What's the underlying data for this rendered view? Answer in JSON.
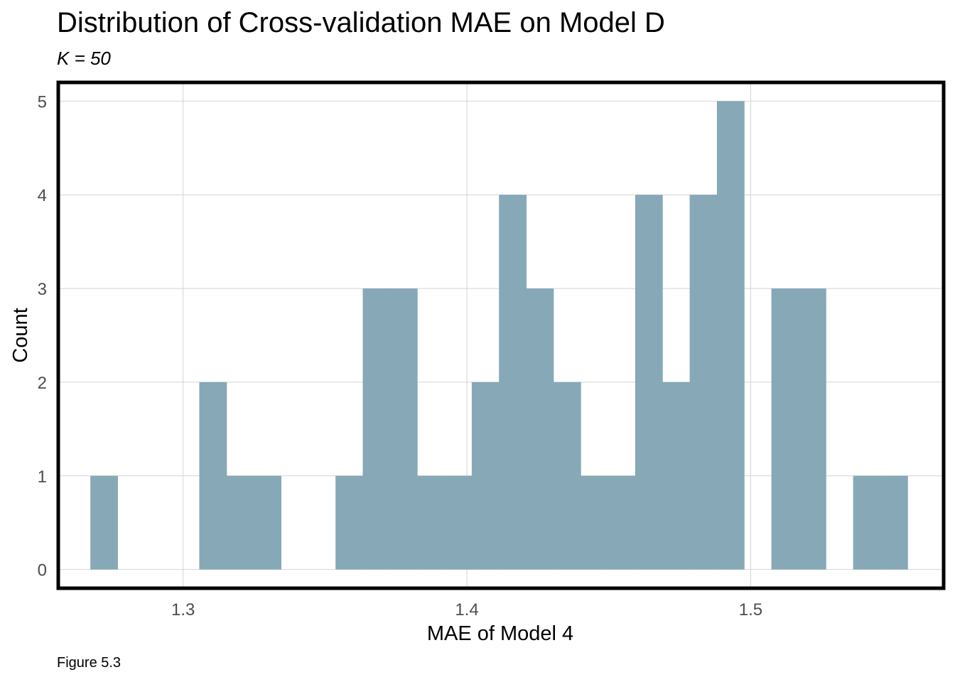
{
  "title": "Distribution of Cross-validation MAE on Model D",
  "subtitle": "K = 50",
  "caption": "Figure 5.3",
  "chart_data": {
    "type": "bar",
    "subtype": "histogram",
    "xlabel": "MAE of Model 4",
    "ylabel": "Count",
    "xlim": [
      1.256,
      1.568
    ],
    "ylim": [
      -0.2,
      5.2
    ],
    "x_ticks": [
      1.3,
      1.4,
      1.5
    ],
    "x_tick_labels": [
      "1.3",
      "1.4",
      "1.5"
    ],
    "y_ticks": [
      0,
      1,
      2,
      3,
      4,
      5
    ],
    "y_tick_labels": [
      "0",
      "1",
      "2",
      "3",
      "4",
      "5"
    ],
    "grid": true,
    "bar_color": "#87a8b7",
    "bins": [
      {
        "x0": 1.2673,
        "x1": 1.2769,
        "count": 1
      },
      {
        "x0": 1.3057,
        "x1": 1.3153,
        "count": 2
      },
      {
        "x0": 1.3153,
        "x1": 1.3249,
        "count": 1
      },
      {
        "x0": 1.3249,
        "x1": 1.3345,
        "count": 1
      },
      {
        "x0": 1.3537,
        "x1": 1.3633,
        "count": 1
      },
      {
        "x0": 1.3633,
        "x1": 1.3729,
        "count": 3
      },
      {
        "x0": 1.3729,
        "x1": 1.3825,
        "count": 3
      },
      {
        "x0": 1.3825,
        "x1": 1.3921,
        "count": 1
      },
      {
        "x0": 1.3921,
        "x1": 1.4017,
        "count": 1
      },
      {
        "x0": 1.4017,
        "x1": 1.4113,
        "count": 2
      },
      {
        "x0": 1.4113,
        "x1": 1.4209,
        "count": 4
      },
      {
        "x0": 1.4209,
        "x1": 1.4305,
        "count": 3
      },
      {
        "x0": 1.4305,
        "x1": 1.4401,
        "count": 2
      },
      {
        "x0": 1.4401,
        "x1": 1.4497,
        "count": 1
      },
      {
        "x0": 1.4497,
        "x1": 1.4593,
        "count": 1
      },
      {
        "x0": 1.4593,
        "x1": 1.4689,
        "count": 4
      },
      {
        "x0": 1.4689,
        "x1": 1.4785,
        "count": 2
      },
      {
        "x0": 1.4785,
        "x1": 1.4881,
        "count": 4
      },
      {
        "x0": 1.4881,
        "x1": 1.4977,
        "count": 5
      },
      {
        "x0": 1.5073,
        "x1": 1.5169,
        "count": 3
      },
      {
        "x0": 1.5169,
        "x1": 1.5265,
        "count": 3
      },
      {
        "x0": 1.5361,
        "x1": 1.5457,
        "count": 1
      },
      {
        "x0": 1.5457,
        "x1": 1.5553,
        "count": 1
      }
    ]
  }
}
